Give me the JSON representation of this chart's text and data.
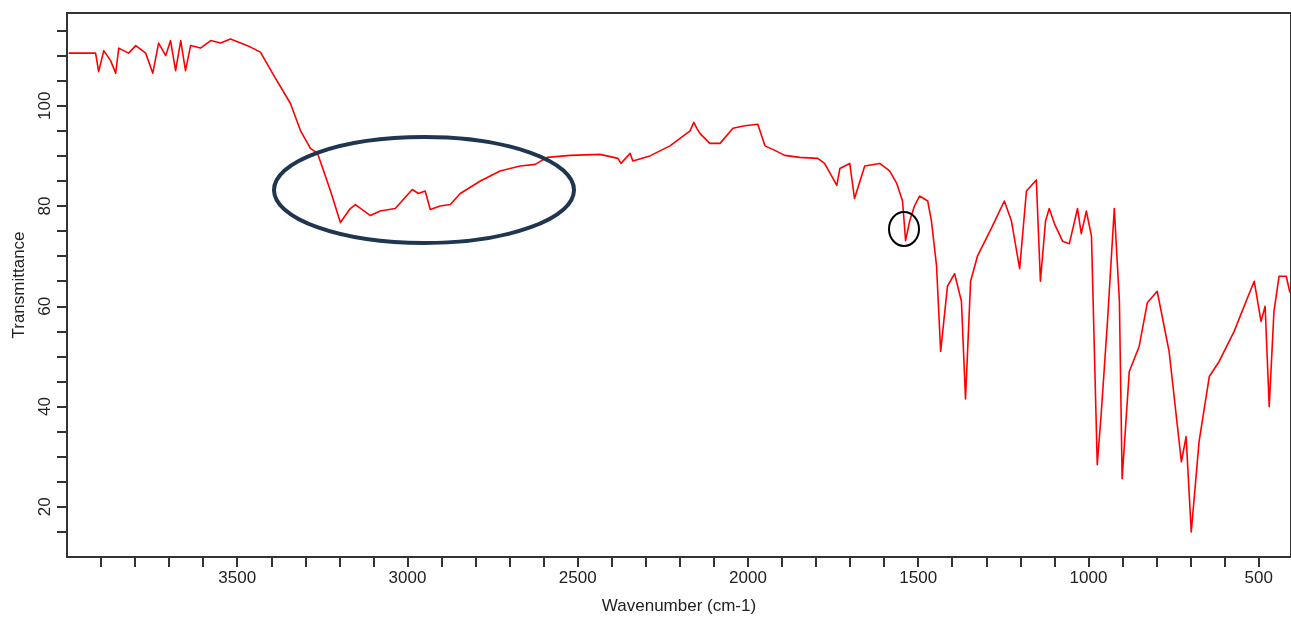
{
  "chart_data": {
    "type": "line",
    "xlabel": "Wavenumber (cm-1)",
    "ylabel": "Transmittance",
    "xlim": [
      4000,
      405
    ],
    "ylim": [
      10,
      118.5
    ],
    "xticks": [
      {
        "value": 3900,
        "label": null
      },
      {
        "value": 3800,
        "label": null
      },
      {
        "value": 3700,
        "label": null
      },
      {
        "value": 3600,
        "label": null
      },
      3500,
      {
        "value": 3400,
        "label": null
      },
      {
        "value": 3300,
        "label": null
      },
      {
        "value": 3200,
        "label": null
      },
      {
        "value": 3100,
        "label": null
      },
      3000,
      {
        "value": 2900,
        "label": null
      },
      {
        "value": 2800,
        "label": null
      },
      {
        "value": 2700,
        "label": null
      },
      {
        "value": 2600,
        "label": null
      },
      2500,
      {
        "value": 2400,
        "label": null
      },
      {
        "value": 2300,
        "label": null
      },
      {
        "value": 2200,
        "label": null
      },
      {
        "value": 2100,
        "label": null
      },
      2000,
      {
        "value": 1900,
        "label": null
      },
      {
        "value": 1800,
        "label": null
      },
      {
        "value": 1700,
        "label": null
      },
      {
        "value": 1600,
        "label": null
      },
      1500,
      {
        "value": 1400,
        "label": null
      },
      {
        "value": 1300,
        "label": null
      },
      {
        "value": 1200,
        "label": null
      },
      {
        "value": 1100,
        "label": null
      },
      1000,
      {
        "value": 900,
        "label": null
      },
      {
        "value": 800,
        "label": null
      },
      {
        "value": 700,
        "label": null
      },
      {
        "value": 600,
        "label": null
      },
      500
    ],
    "yticks": [
      {
        "value": 15,
        "label": null
      },
      20,
      {
        "value": 25,
        "label": null
      },
      {
        "value": 30,
        "label": null
      },
      {
        "value": 35,
        "label": null
      },
      40,
      {
        "value": 45,
        "label": null
      },
      {
        "value": 50,
        "label": null
      },
      {
        "value": 55,
        "label": null
      },
      60,
      {
        "value": 65,
        "label": null
      },
      {
        "value": 70,
        "label": null
      },
      {
        "value": 75,
        "label": null
      },
      80,
      {
        "value": 85,
        "label": null
      },
      {
        "value": 90,
        "label": null
      },
      {
        "value": 95,
        "label": null
      },
      100,
      {
        "value": 105,
        "label": null
      },
      {
        "value": 110,
        "label": null
      },
      {
        "value": 115,
        "label": null
      }
    ],
    "grid": false,
    "marker": "none",
    "line_style": "solid",
    "series": [
      {
        "color": "#ff0000",
        "x": [
          3995,
          3960,
          3916,
          3907,
          3892,
          3872,
          3857,
          3848,
          3819,
          3798,
          3769,
          3748,
          3731,
          3710,
          3696,
          3681,
          3666,
          3652,
          3637,
          3608,
          3578,
          3549,
          3520,
          3490,
          3461,
          3432,
          3388,
          3344,
          3314,
          3285,
          3264,
          3226,
          3197,
          3168,
          3153,
          3109,
          3080,
          3036,
          2986,
          2968,
          2948,
          2933,
          2904,
          2874,
          2845,
          2786,
          2728,
          2669,
          2625,
          2590,
          2522,
          2434,
          2382,
          2373,
          2346,
          2338,
          2288,
          2229,
          2170,
          2159,
          2150,
          2141,
          2112,
          2082,
          2044,
          2009,
          1971,
          1950,
          1921,
          1892,
          1848,
          1795,
          1775,
          1760,
          1739,
          1730,
          1701,
          1687,
          1657,
          1613,
          1584,
          1563,
          1546,
          1537,
          1525,
          1511,
          1496,
          1472,
          1461,
          1446,
          1434,
          1414,
          1393,
          1373,
          1361,
          1346,
          1326,
          1282,
          1247,
          1226,
          1202,
          1182,
          1153,
          1141,
          1126,
          1115,
          1100,
          1076,
          1056,
          1032,
          1021,
          1006,
          991,
          974,
          962,
          944,
          924,
          909,
          901,
          880,
          851,
          827,
          798,
          763,
          727,
          713,
          698,
          675,
          645,
          616,
          572,
          528,
          513,
          493,
          481,
          469,
          455,
          440,
          419,
          408
        ],
        "values": [
          110.5,
          110.5,
          110.5,
          106.8,
          111,
          109,
          106.5,
          111.5,
          110.5,
          112,
          110.5,
          106.5,
          112.5,
          110,
          113,
          107,
          113,
          107,
          112,
          111.5,
          113,
          112.5,
          113.3,
          112.5,
          111.7,
          110.7,
          105.5,
          100.5,
          95,
          91.5,
          90.5,
          83,
          76.7,
          79.5,
          80.3,
          78.1,
          79,
          79.5,
          83.3,
          82.5,
          83,
          79.3,
          80,
          80.3,
          82.5,
          85,
          87,
          88,
          88.3,
          89.7,
          90.1,
          90.3,
          89.5,
          88.5,
          90.5,
          89,
          90,
          92,
          95,
          96.7,
          95.5,
          94.5,
          92.5,
          92.5,
          95.5,
          96,
          96.3,
          92,
          91.1,
          90.1,
          89.7,
          89.5,
          88.5,
          86.7,
          84.1,
          87.5,
          88.5,
          81.5,
          88,
          88.5,
          87,
          84.5,
          81,
          73.1,
          77,
          80,
          82,
          81,
          77,
          68,
          51,
          64,
          66.5,
          61,
          41.5,
          65,
          70,
          76,
          81,
          77,
          67.5,
          83,
          85.2,
          65,
          77,
          79.5,
          76.5,
          73,
          72.5,
          79.5,
          74.5,
          79,
          74,
          28.4,
          39,
          57,
          79.5,
          61,
          25.6,
          47,
          52,
          60.7,
          63,
          51,
          29,
          34,
          15,
          33,
          46,
          49,
          55,
          62.5,
          65,
          57,
          60,
          40,
          59,
          66,
          66,
          62.7
        ]
      }
    ]
  }
}
